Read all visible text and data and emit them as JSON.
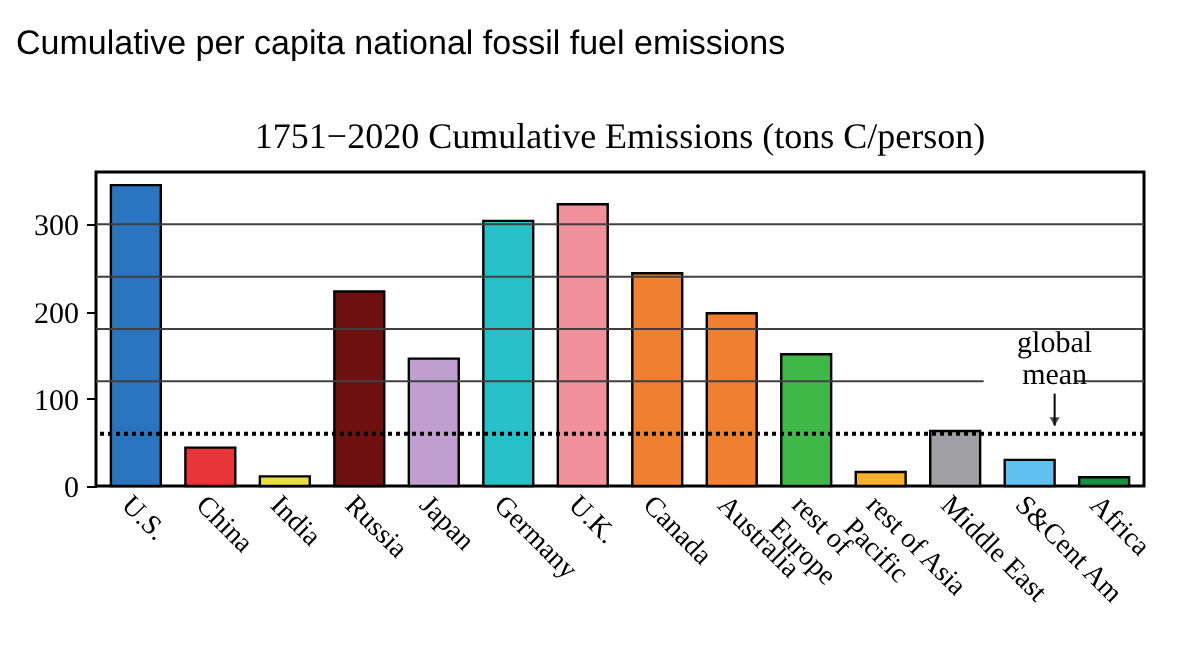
{
  "chart_data": {
    "type": "bar",
    "title": "Cumulative per capita national fossil fuel emissions",
    "subtitle": "1751−2020 Cumulative Emissions (tons C/person)",
    "categories": [
      "U.S.",
      "China",
      "India",
      "Russia",
      "Japan",
      "Germany",
      "U.K.",
      "Canada",
      "Australia",
      "rest of Europe",
      "rest of Asia Pacific",
      "Middle East",
      "S&Cent Am",
      "Africa"
    ],
    "values": [
      345,
      44,
      11,
      223,
      146,
      304,
      323,
      244,
      198,
      151,
      16,
      63,
      30,
      10
    ],
    "colors": [
      "#2a74c0",
      "#e8353a",
      "#e8e040",
      "#6e1010",
      "#c09fd0",
      "#28c0c8",
      "#f0909a",
      "#f08030",
      "#f08030",
      "#40b848",
      "#f8b030",
      "#a0a0a4",
      "#60c0f0",
      "#189040"
    ],
    "ylim": [
      0,
      360
    ],
    "yticks": [
      0,
      100,
      200,
      300
    ],
    "ref_lines": [
      {
        "axis": "y",
        "value": 120,
        "color": "#404040"
      },
      {
        "axis": "y",
        "value": 180,
        "color": "#404040"
      },
      {
        "axis": "y",
        "value": 240,
        "color": "#404040"
      },
      {
        "axis": "y",
        "value": 300,
        "color": "#404040"
      },
      {
        "axis": "y",
        "value": 60,
        "color": "#000000",
        "line_style": "dotted"
      }
    ],
    "annotations": [
      {
        "text": "global mean",
        "x": "S&Cent Am",
        "y": 60
      }
    ]
  }
}
